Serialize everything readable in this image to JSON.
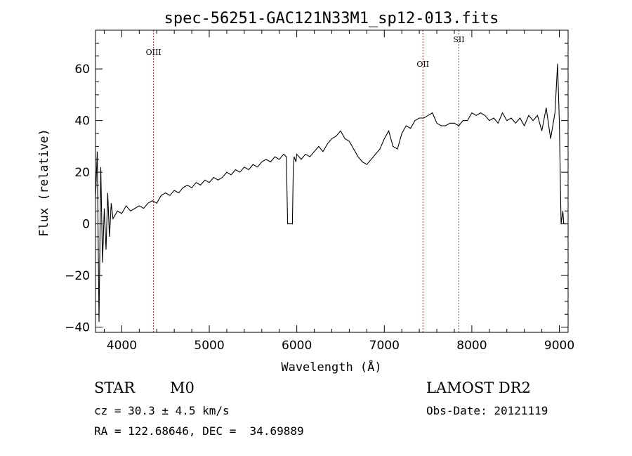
{
  "chart_data": {
    "type": "line",
    "title": "spec-56251-GAC121N33M1_sp12-013.fits",
    "xlabel": "Wavelength (Å)",
    "ylabel": "Flux (relative)",
    "xlim": [
      3700,
      9100
    ],
    "ylim": [
      -42,
      75
    ],
    "xticks": [
      4000,
      5000,
      6000,
      7000,
      8000,
      9000
    ],
    "yticks": [
      -40,
      -20,
      0,
      20,
      40,
      60
    ],
    "grid": false,
    "lines": [
      {
        "name": "OIII",
        "x": 4363
      },
      {
        "name": "OII",
        "x": 7441
      },
      {
        "name": "SII",
        "x": 7852
      }
    ],
    "series": [
      {
        "x": [
          3700,
          3720,
          3740,
          3760,
          3780,
          3800,
          3820,
          3840,
          3860,
          3880,
          3900,
          3950,
          4000,
          4050,
          4100,
          4150,
          4200,
          4250,
          4300,
          4350,
          4400,
          4450,
          4500,
          4550,
          4600,
          4650,
          4700,
          4750,
          4800,
          4850,
          4900,
          4950,
          5000,
          5050,
          5100,
          5150,
          5200,
          5250,
          5300,
          5350,
          5400,
          5450,
          5500,
          5550,
          5600,
          5650,
          5700,
          5750,
          5800,
          5850,
          5880,
          5895,
          5905,
          5950,
          5960,
          5970,
          5990,
          6000,
          6050,
          6100,
          6150,
          6200,
          6250,
          6300,
          6350,
          6400,
          6450,
          6500,
          6550,
          6600,
          6650,
          6700,
          6750,
          6800,
          6850,
          6900,
          6950,
          7000,
          7050,
          7100,
          7150,
          7200,
          7250,
          7300,
          7350,
          7400,
          7450,
          7500,
          7550,
          7600,
          7650,
          7700,
          7750,
          7800,
          7850,
          7900,
          7950,
          8000,
          8050,
          8100,
          8150,
          8200,
          8250,
          8300,
          8350,
          8400,
          8450,
          8500,
          8550,
          8600,
          8650,
          8700,
          8750,
          8800,
          8850,
          8900,
          8950,
          8980,
          9000,
          9020,
          9040,
          9050
        ],
        "values": [
          10,
          28,
          -38,
          22,
          -15,
          6,
          -10,
          12,
          -5,
          8,
          2,
          5,
          4,
          7,
          5,
          6,
          7,
          6,
          8,
          9,
          8,
          11,
          12,
          11,
          13,
          12,
          14,
          15,
          14,
          16,
          15,
          17,
          16,
          18,
          17,
          18,
          20,
          19,
          21,
          20,
          22,
          21,
          23,
          22,
          24,
          25,
          24,
          26,
          25,
          27,
          26,
          0,
          0,
          0,
          22,
          26,
          24,
          27,
          25,
          27,
          26,
          28,
          30,
          28,
          31,
          33,
          34,
          36,
          33,
          32,
          29,
          26,
          24,
          23,
          25,
          27,
          29,
          33,
          36,
          30,
          29,
          35,
          38,
          37,
          40,
          41,
          41,
          42,
          43,
          39,
          38,
          38,
          39,
          39,
          38,
          40,
          40,
          43,
          42,
          43,
          42,
          40,
          41,
          39,
          43,
          40,
          41,
          39,
          41,
          38,
          42,
          40,
          42,
          36,
          45,
          33,
          43,
          62,
          40,
          0,
          5,
          0
        ]
      }
    ]
  },
  "info": {
    "object_class": "STAR",
    "subclass": "M0",
    "survey": "LAMOST DR2",
    "redshift": "cz = 30.3 ± 4.5 km/s",
    "obs_date": "Obs-Date: 20121119",
    "coords": "RA = 122.68646, DEC =  34.69889"
  },
  "colors": {
    "spectrum": "#000000",
    "line_marker": "#a83232"
  }
}
